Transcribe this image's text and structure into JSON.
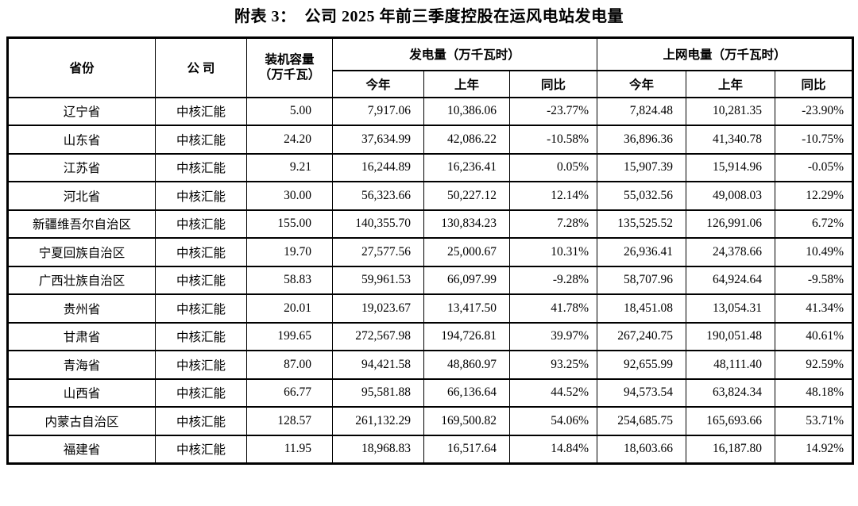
{
  "title": "附表 3：  公司 2025 年前三季度控股在运风电站发电量",
  "table": {
    "headers": {
      "province": "省份",
      "company": "公  司",
      "capacity": "装机容量\n（万千瓦）",
      "generation_group": "发电量（万千瓦时）",
      "ongrid_group": "上网电量（万千瓦时）"
    },
    "sub_headers": [
      "今年",
      "上年",
      "同比"
    ],
    "rows": [
      [
        "辽宁省",
        "中核汇能",
        "5.00",
        "7,917.06",
        "10,386.06",
        "-23.77%",
        "7,824.48",
        "10,281.35",
        "-23.90%"
      ],
      [
        "山东省",
        "中核汇能",
        "24.20",
        "37,634.99",
        "42,086.22",
        "-10.58%",
        "36,896.36",
        "41,340.78",
        "-10.75%"
      ],
      [
        "江苏省",
        "中核汇能",
        "9.21",
        "16,244.89",
        "16,236.41",
        "0.05%",
        "15,907.39",
        "15,914.96",
        "-0.05%"
      ],
      [
        "河北省",
        "中核汇能",
        "30.00",
        "56,323.66",
        "50,227.12",
        "12.14%",
        "55,032.56",
        "49,008.03",
        "12.29%"
      ],
      [
        "新疆维吾尔自治区",
        "中核汇能",
        "155.00",
        "140,355.70",
        "130,834.23",
        "7.28%",
        "135,525.52",
        "126,991.06",
        "6.72%"
      ],
      [
        "宁夏回族自治区",
        "中核汇能",
        "19.70",
        "27,577.56",
        "25,000.67",
        "10.31%",
        "26,936.41",
        "24,378.66",
        "10.49%"
      ],
      [
        "广西壮族自治区",
        "中核汇能",
        "58.83",
        "59,961.53",
        "66,097.99",
        "-9.28%",
        "58,707.96",
        "64,924.64",
        "-9.58%"
      ],
      [
        "贵州省",
        "中核汇能",
        "20.01",
        "19,023.67",
        "13,417.50",
        "41.78%",
        "18,451.08",
        "13,054.31",
        "41.34%"
      ],
      [
        "甘肃省",
        "中核汇能",
        "199.65",
        "272,567.98",
        "194,726.81",
        "39.97%",
        "267,240.75",
        "190,051.48",
        "40.61%"
      ],
      [
        "青海省",
        "中核汇能",
        "87.00",
        "94,421.58",
        "48,860.97",
        "93.25%",
        "92,655.99",
        "48,111.40",
        "92.59%"
      ],
      [
        "山西省",
        "中核汇能",
        "66.77",
        "95,581.88",
        "66,136.64",
        "44.52%",
        "94,573.54",
        "63,824.34",
        "48.18%"
      ],
      [
        "内蒙古自治区",
        "中核汇能",
        "128.57",
        "261,132.29",
        "169,500.82",
        "54.06%",
        "254,685.75",
        "165,693.66",
        "53.71%"
      ],
      [
        "福建省",
        "中核汇能",
        "11.95",
        "18,968.83",
        "16,517.64",
        "14.84%",
        "18,603.66",
        "16,187.80",
        "14.92%"
      ]
    ]
  }
}
